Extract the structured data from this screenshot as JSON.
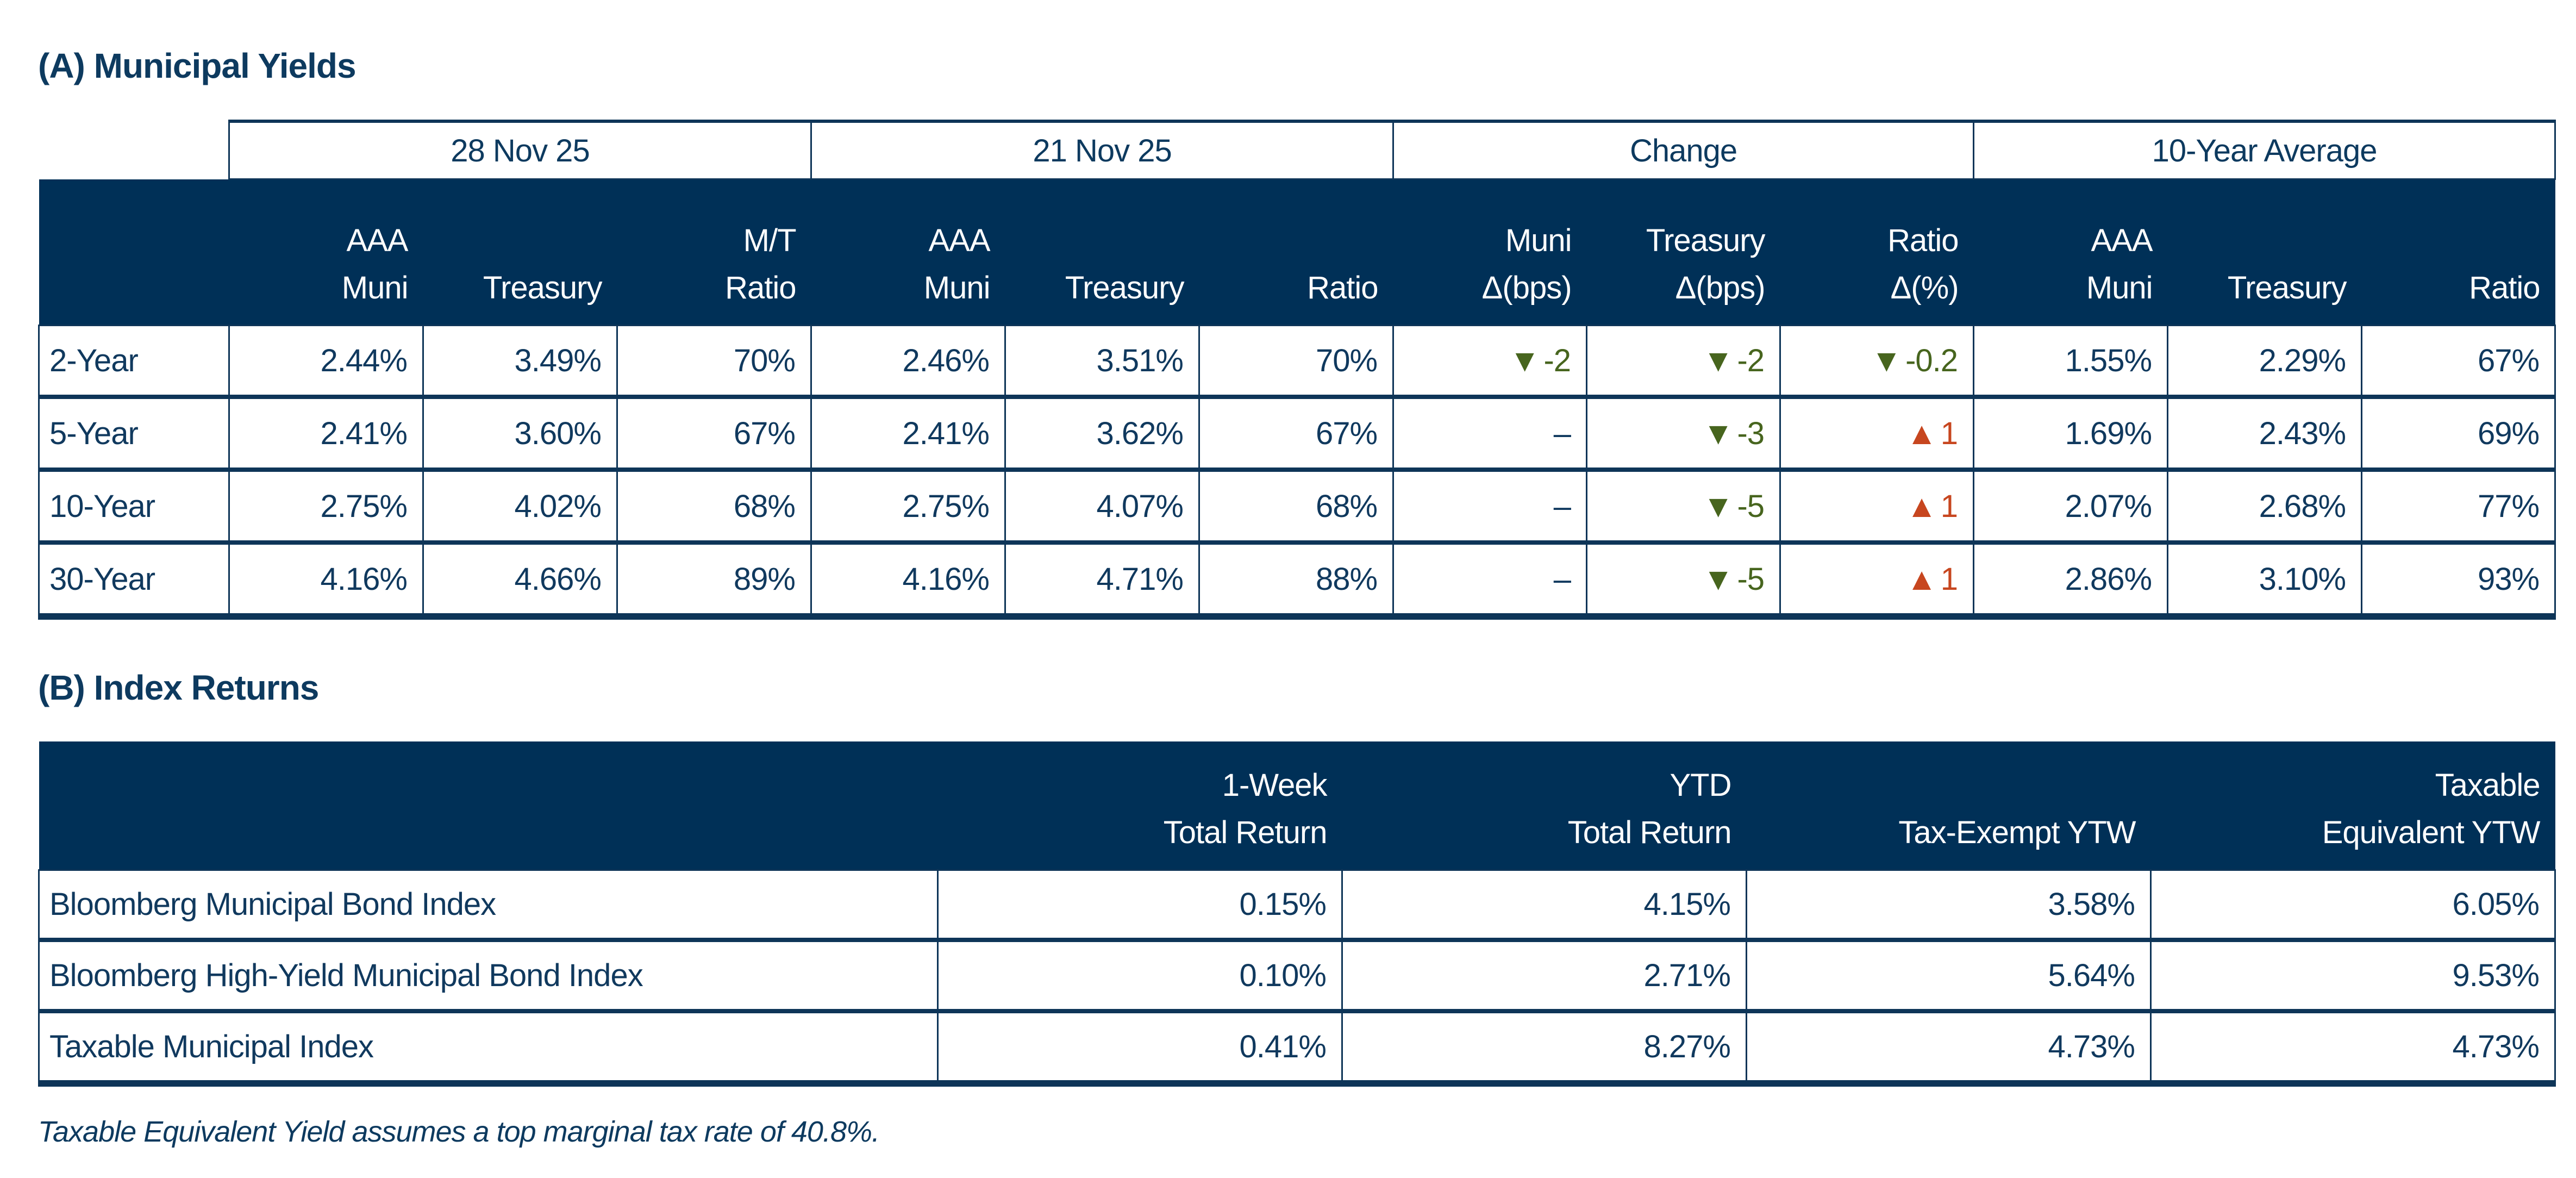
{
  "colors": {
    "header_navy": "#003057",
    "text_navy": "#10395E",
    "down_green": "#47651E",
    "up_red": "#C7461F",
    "background": "#FFFFFF"
  },
  "section_a": {
    "title": "(A) Municipal Yields",
    "groups": [
      {
        "label": "28 Nov 25"
      },
      {
        "label": "21 Nov 25"
      },
      {
        "label": "Change"
      },
      {
        "label": "10-Year Average"
      }
    ],
    "columns": [
      {
        "line1": "AAA",
        "line2": "Muni"
      },
      {
        "line1": "",
        "line2": "Treasury"
      },
      {
        "line1": "M/T",
        "line2": "Ratio"
      },
      {
        "line1": "AAA",
        "line2": "Muni"
      },
      {
        "line1": "",
        "line2": "Treasury"
      },
      {
        "line1": "",
        "line2": "Ratio"
      },
      {
        "line1": "Muni",
        "line2": "Δ(bps)"
      },
      {
        "line1": "Treasury",
        "line2": "Δ(bps)"
      },
      {
        "line1": "Ratio",
        "line2": "Δ(%)"
      },
      {
        "line1": "AAA",
        "line2": "Muni"
      },
      {
        "line1": "",
        "line2": "Treasury"
      },
      {
        "line1": "",
        "line2": "Ratio"
      }
    ],
    "rows": [
      {
        "label": "2-Year",
        "cells": [
          {
            "text": "2.44%"
          },
          {
            "text": "3.49%"
          },
          {
            "text": "70%"
          },
          {
            "text": "2.46%"
          },
          {
            "text": "3.51%"
          },
          {
            "text": "70%"
          },
          {
            "dir": "down",
            "icon": "▼",
            "text": "-2"
          },
          {
            "dir": "down",
            "icon": "▼",
            "text": "-2"
          },
          {
            "dir": "down",
            "icon": "▼",
            "text": "-0.2"
          },
          {
            "text": "1.55%"
          },
          {
            "text": "2.29%"
          },
          {
            "text": "67%"
          }
        ]
      },
      {
        "label": "5-Year",
        "cells": [
          {
            "text": "2.41%"
          },
          {
            "text": "3.60%"
          },
          {
            "text": "67%"
          },
          {
            "text": "2.41%"
          },
          {
            "text": "3.62%"
          },
          {
            "text": "67%"
          },
          {
            "dir": "dash",
            "icon": "",
            "text": "–"
          },
          {
            "dir": "down",
            "icon": "▼",
            "text": "-3"
          },
          {
            "dir": "up",
            "icon": "▲",
            "text": "1"
          },
          {
            "text": "1.69%"
          },
          {
            "text": "2.43%"
          },
          {
            "text": "69%"
          }
        ]
      },
      {
        "label": "10-Year",
        "cells": [
          {
            "text": "2.75%"
          },
          {
            "text": "4.02%"
          },
          {
            "text": "68%"
          },
          {
            "text": "2.75%"
          },
          {
            "text": "4.07%"
          },
          {
            "text": "68%"
          },
          {
            "dir": "dash",
            "icon": "",
            "text": "–"
          },
          {
            "dir": "down",
            "icon": "▼",
            "text": "-5"
          },
          {
            "dir": "up",
            "icon": "▲",
            "text": "1"
          },
          {
            "text": "2.07%"
          },
          {
            "text": "2.68%"
          },
          {
            "text": "77%"
          }
        ]
      },
      {
        "label": "30-Year",
        "cells": [
          {
            "text": "4.16%"
          },
          {
            "text": "4.66%"
          },
          {
            "text": "89%"
          },
          {
            "text": "4.16%"
          },
          {
            "text": "4.71%"
          },
          {
            "text": "88%"
          },
          {
            "dir": "dash",
            "icon": "",
            "text": "–"
          },
          {
            "dir": "down",
            "icon": "▼",
            "text": "-5"
          },
          {
            "dir": "up",
            "icon": "▲",
            "text": "1"
          },
          {
            "text": "2.86%"
          },
          {
            "text": "3.10%"
          },
          {
            "text": "93%"
          }
        ]
      }
    ]
  },
  "section_b": {
    "title": "(B) Index Returns",
    "columns": [
      {
        "line1": "1-Week",
        "line2": "Total Return"
      },
      {
        "line1": "YTD",
        "line2": "Total Return"
      },
      {
        "line1": "",
        "line2": "Tax-Exempt YTW"
      },
      {
        "line1": "Taxable",
        "line2": "Equivalent YTW"
      }
    ],
    "rows": [
      {
        "label": "Bloomberg Municipal Bond Index",
        "cells": [
          {
            "text": "0.15%"
          },
          {
            "text": "4.15%"
          },
          {
            "text": "3.58%"
          },
          {
            "text": "6.05%"
          }
        ]
      },
      {
        "label": "Bloomberg High-Yield Municipal Bond Index",
        "cells": [
          {
            "text": "0.10%"
          },
          {
            "text": "2.71%"
          },
          {
            "text": "5.64%"
          },
          {
            "text": "9.53%"
          }
        ]
      },
      {
        "label": "Taxable Municipal Index",
        "cells": [
          {
            "text": "0.41%"
          },
          {
            "text": "8.27%"
          },
          {
            "text": "4.73%"
          },
          {
            "text": "4.73%"
          }
        ]
      }
    ]
  },
  "footnote": "Taxable Equivalent Yield assumes a top marginal tax rate of 40.8%."
}
